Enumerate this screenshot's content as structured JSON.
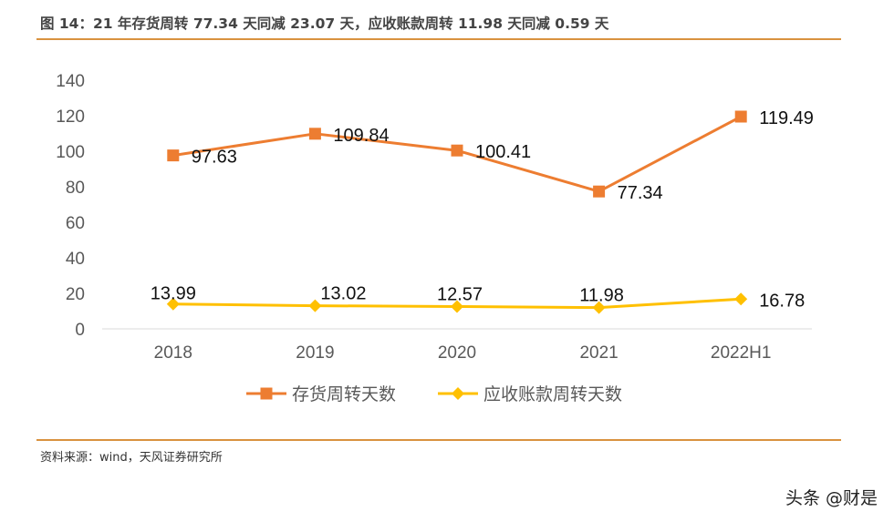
{
  "title": "图 14：21 年存货周转 77.34 天同减 23.07 天，应收账款周转 11.98 天同减 0.59 天",
  "source": "资料来源：wind，天风证券研究所",
  "watermark": "头条 @财是",
  "colors": {
    "inventory": "#ed7d31",
    "receivables": "#ffc000",
    "accent_rule": "#d9923f",
    "axis": "#d9d9d9"
  },
  "chart_data": {
    "type": "line",
    "categories": [
      "2018",
      "2019",
      "2020",
      "2021",
      "2022H1"
    ],
    "ylim": [
      0,
      140
    ],
    "yticks": [
      0,
      20,
      40,
      60,
      80,
      100,
      120,
      140
    ],
    "grid": false,
    "legend": "bottom",
    "series": [
      {
        "name": "存货周转天数",
        "values": [
          97.63,
          109.84,
          100.41,
          77.34,
          119.49
        ],
        "labels": [
          "97.63",
          "109.84",
          "100.41",
          "77.34",
          "119.49"
        ],
        "marker": "square",
        "color": "#ed7d31"
      },
      {
        "name": "应收账款周转天数",
        "values": [
          13.99,
          13.02,
          12.57,
          11.98,
          16.78
        ],
        "labels": [
          "13.99",
          "13.02",
          "12.57",
          "11.98",
          "16.78"
        ],
        "marker": "diamond",
        "color": "#ffc000"
      }
    ]
  }
}
